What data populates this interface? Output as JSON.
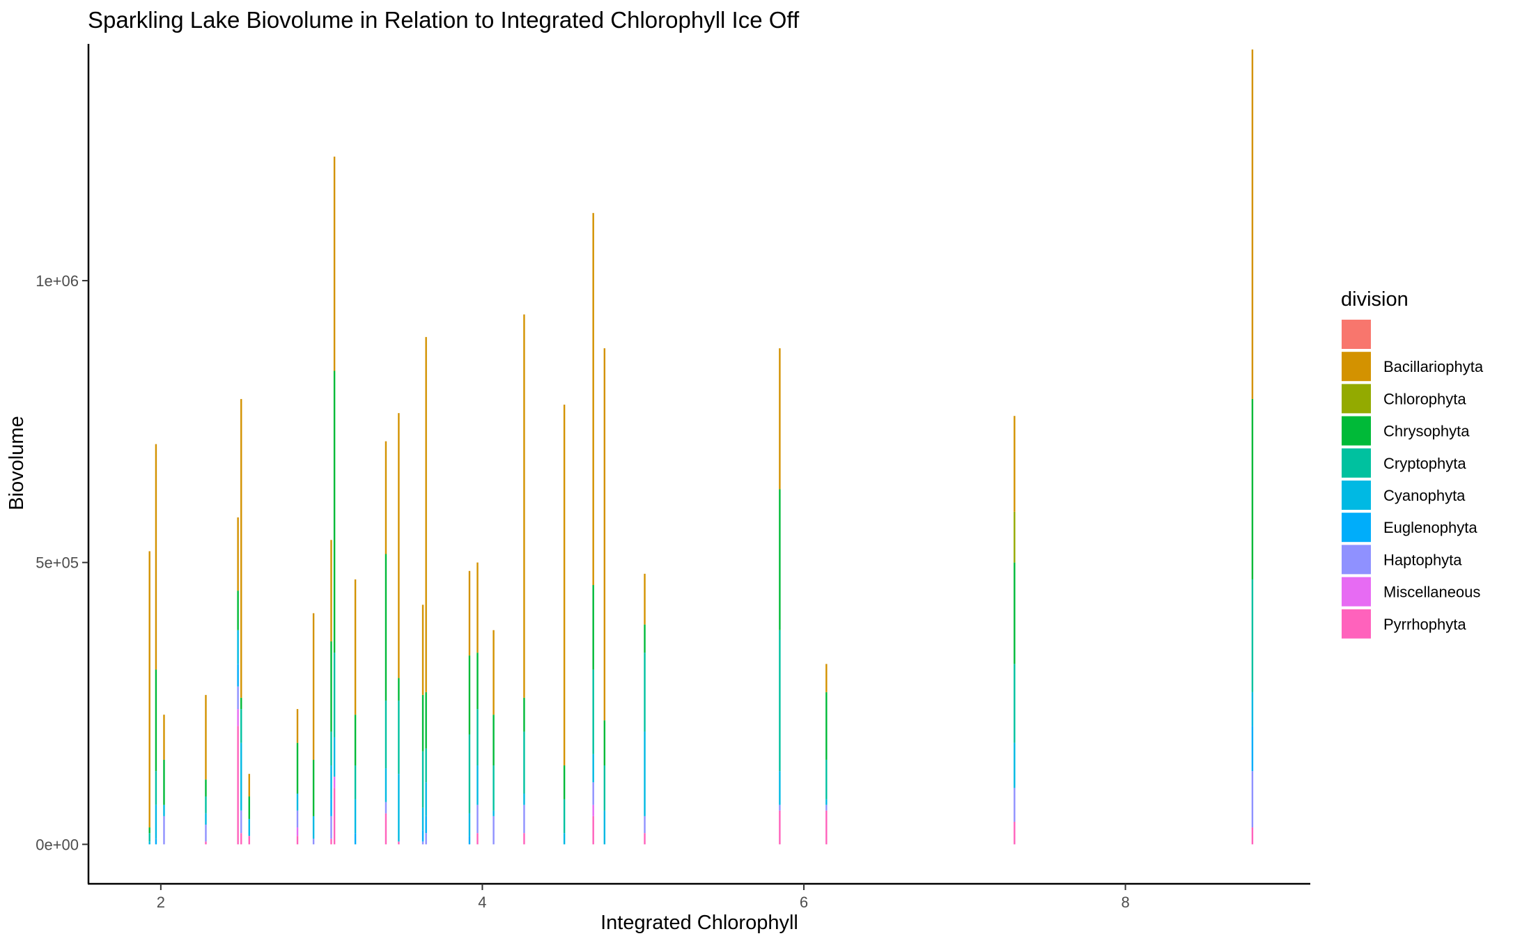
{
  "chart_data": {
    "type": "bar",
    "title": "Sparkling Lake Biovolume in Relation to Integrated Chlorophyll Ice Off",
    "xlabel": "Integrated Chlorophyll",
    "ylabel": "Biovolume",
    "xlim": [
      1.55,
      9.15
    ],
    "ylim": [
      -70000,
      1420000
    ],
    "x_ticks": [
      {
        "value": 2,
        "label": "2"
      },
      {
        "value": 4,
        "label": "4"
      },
      {
        "value": 6,
        "label": "6"
      },
      {
        "value": 8,
        "label": "8"
      }
    ],
    "y_ticks": [
      {
        "value": 0,
        "label": "0e+00"
      },
      {
        "value": 500000,
        "label": "5e+05"
      },
      {
        "value": 1000000,
        "label": "1e+06"
      }
    ],
    "grid": false,
    "legend_title": "division",
    "legend_position": "right",
    "series": [
      {
        "name": "",
        "color": "#F8766D"
      },
      {
        "name": "Bacillariophyta",
        "color": "#D39200"
      },
      {
        "name": "Chlorophyta",
        "color": "#93AA00"
      },
      {
        "name": "Chrysophyta",
        "color": "#00BA38"
      },
      {
        "name": "Cryptophyta",
        "color": "#00C19F"
      },
      {
        "name": "Cyanophyta",
        "color": "#00B9E3"
      },
      {
        "name": "Euglenophyta",
        "color": "#00ADFA"
      },
      {
        "name": "Haptophyta",
        "color": "#8F91FF"
      },
      {
        "name": "Miscellaneous",
        "color": "#E76BF3"
      },
      {
        "name": "Pyrrhophyta",
        "color": "#FF62BC"
      }
    ],
    "stack_order": [
      "Bacillariophyta",
      "Chlorophyta",
      "Chrysophyta",
      "Cryptophyta",
      "Cyanophyta",
      "Euglenophyta",
      "Haptophyta",
      "Miscellaneous",
      "Pyrrhophyta"
    ],
    "bars": [
      {
        "x": 1.93,
        "values": {
          "Bacillariophyta": 490000,
          "Chrysophyta": 10000,
          "Cryptophyta": 15000,
          "Cyanophyta": 5000
        }
      },
      {
        "x": 1.97,
        "values": {
          "Bacillariophyta": 400000,
          "Chrysophyta": 180000,
          "Cryptophyta": 60000,
          "Cyanophyta": 60000,
          "Euglenophyta": 10000
        }
      },
      {
        "x": 2.02,
        "values": {
          "Bacillariophyta": 80000,
          "Chrysophyta": 80000,
          "Cyanophyta": 20000,
          "Haptophyta": 50000
        }
      },
      {
        "x": 2.28,
        "values": {
          "Bacillariophyta": 150000,
          "Chrysophyta": 30000,
          "Cryptophyta": 30000,
          "Cyanophyta": 20000,
          "Haptophyta": 30000,
          "Pyrrhophyta": 5000
        }
      },
      {
        "x": 2.48,
        "values": {
          "Bacillariophyta": 130000,
          "Chrysophyta": 70000,
          "Cyanophyta": 60000,
          "Euglenophyta": 40000,
          "Haptophyta": 40000,
          "Miscellaneous": 30000,
          "Pyrrhophyta": 210000
        }
      },
      {
        "x": 2.5,
        "values": {
          "Bacillariophyta": 530000,
          "Chrysophyta": 20000,
          "Cryptophyta": 60000,
          "Cyanophyta": 120000,
          "Haptophyta": 40000,
          "Pyrrhophyta": 20000
        }
      },
      {
        "x": 2.55,
        "values": {
          "Bacillariophyta": 40000,
          "Chrysophyta": 40000,
          "Cyanophyta": 30000,
          "Pyrrhophyta": 15000
        }
      },
      {
        "x": 2.85,
        "values": {
          "Bacillariophyta": 60000,
          "Chrysophyta": 90000,
          "Cyanophyta": 30000,
          "Haptophyta": 30000,
          "Miscellaneous": 15000,
          "Pyrrhophyta": 15000
        }
      },
      {
        "x": 2.95,
        "values": {
          "Bacillariophyta": 260000,
          "Chrysophyta": 100000,
          "Cyanophyta": 40000,
          "Haptophyta": 10000
        }
      },
      {
        "x": 3.06,
        "values": {
          "Bacillariophyta": 180000,
          "Chrysophyta": 160000,
          "Cryptophyta": 60000,
          "Cyanophyta": 60000,
          "Euglenophyta": 30000,
          "Haptophyta": 40000,
          "Pyrrhophyta": 10000
        }
      },
      {
        "x": 3.08,
        "values": {
          "Bacillariophyta": 380000,
          "Chrysophyta": 500000,
          "Cryptophyta": 150000,
          "Cyanophyta": 70000,
          "Miscellaneous": 20000,
          "Pyrrhophyta": 100000
        }
      },
      {
        "x": 3.21,
        "values": {
          "Bacillariophyta": 240000,
          "Chrysophyta": 90000,
          "Cryptophyta": 60000,
          "Cyanophyta": 60000,
          "Euglenophyta": 20000
        }
      },
      {
        "x": 3.4,
        "values": {
          "Bacillariophyta": 200000,
          "Chrysophyta": 260000,
          "Cryptophyta": 120000,
          "Cyanophyta": 60000,
          "Haptophyta": 20000,
          "Pyrrhophyta": 55000
        }
      },
      {
        "x": 3.48,
        "values": {
          "Bacillariophyta": 470000,
          "Chrysophyta": 40000,
          "Cryptophyta": 130000,
          "Cyanophyta": 120000,
          "Pyrrhophyta": 5000
        }
      },
      {
        "x": 3.63,
        "values": {
          "Bacillariophyta": 160000,
          "Chrysophyta": 100000,
          "Cryptophyta": 100000,
          "Cyanophyta": 40000,
          "Euglenophyta": 20000,
          "Haptophyta": 5000
        }
      },
      {
        "x": 3.65,
        "values": {
          "Bacillariophyta": 630000,
          "Chrysophyta": 100000,
          "Cryptophyta": 60000,
          "Cyanophyta": 60000,
          "Euglenophyta": 30000,
          "Haptophyta": 20000
        }
      },
      {
        "x": 3.92,
        "values": {
          "Bacillariophyta": 150000,
          "Chrysophyta": 140000,
          "Cryptophyta": 140000,
          "Cyanophyta": 40000,
          "Euglenophyta": 15000
        }
      },
      {
        "x": 3.97,
        "values": {
          "Bacillariophyta": 160000,
          "Chrysophyta": 100000,
          "Cryptophyta": 100000,
          "Cyanophyta": 70000,
          "Haptophyta": 50000,
          "Pyrrhophyta": 20000
        }
      },
      {
        "x": 4.07,
        "values": {
          "Bacillariophyta": 150000,
          "Chrysophyta": 90000,
          "Cryptophyta": 80000,
          "Cyanophyta": 10000,
          "Haptophyta": 50000
        }
      },
      {
        "x": 4.26,
        "values": {
          "Bacillariophyta": 680000,
          "Chrysophyta": 60000,
          "Cryptophyta": 110000,
          "Cyanophyta": 20000,
          "Haptophyta": 50000,
          "Pyrrhophyta": 20000
        }
      },
      {
        "x": 4.51,
        "values": {
          "Bacillariophyta": 640000,
          "Chrysophyta": 60000,
          "Cryptophyta": 60000,
          "Cyanophyta": 20000
        }
      },
      {
        "x": 4.69,
        "values": {
          "Bacillariophyta": 660000,
          "Chrysophyta": 150000,
          "Cryptophyta": 150000,
          "Cyanophyta": 50000,
          "Haptophyta": 40000,
          "Miscellaneous": 20000,
          "Pyrrhophyta": 50000
        }
      },
      {
        "x": 4.76,
        "values": {
          "Bacillariophyta": 660000,
          "Chrysophyta": 80000,
          "Cryptophyta": 80000,
          "Cyanophyta": 60000
        }
      },
      {
        "x": 5.01,
        "values": {
          "Bacillariophyta": 90000,
          "Chrysophyta": 50000,
          "Cryptophyta": 140000,
          "Cyanophyta": 150000,
          "Haptophyta": 30000,
          "Pyrrhophyta": 20000
        }
      },
      {
        "x": 5.85,
        "values": {
          "Bacillariophyta": 250000,
          "Chrysophyta": 250000,
          "Cryptophyta": 250000,
          "Cyanophyta": 60000,
          "Haptophyta": 10000,
          "Pyrrhophyta": 60000
        }
      },
      {
        "x": 6.14,
        "values": {
          "Bacillariophyta": 50000,
          "Chrysophyta": 120000,
          "Cryptophyta": 70000,
          "Cyanophyta": 10000,
          "Haptophyta": 10000,
          "Pyrrhophyta": 60000
        }
      },
      {
        "x": 7.31,
        "values": {
          "Bacillariophyta": 170000,
          "Chlorophyta": 90000,
          "Chrysophyta": 180000,
          "Cryptophyta": 140000,
          "Cyanophyta": 80000,
          "Haptophyta": 60000,
          "Pyrrhophyta": 40000
        }
      },
      {
        "x": 8.79,
        "values": {
          "Bacillariophyta": 620000,
          "Chrysophyta": 320000,
          "Cryptophyta": 200000,
          "Cyanophyta": 60000,
          "Euglenophyta": 80000,
          "Haptophyta": 100000,
          "Pyrrhophyta": 30000
        }
      }
    ]
  }
}
